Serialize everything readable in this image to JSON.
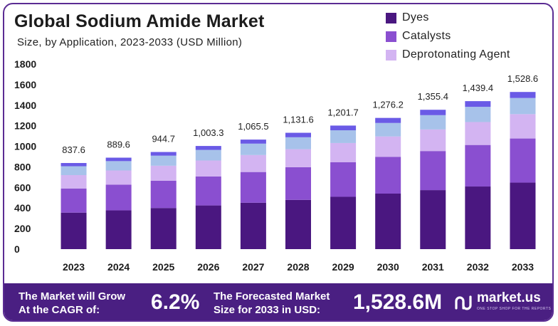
{
  "header": {
    "title": "Global Sodium Amide Market",
    "subtitle": "Size, by Application, 2023-2033 (USD Million)"
  },
  "colors": {
    "dyes": "#4a1780",
    "catalysts": "#8a4fd0",
    "deprotonating": "#d3b4f2",
    "top_segment": "#a7c2ea",
    "cap": "#6a5ae6",
    "footer_bg": "#4a1f82"
  },
  "legend": [
    {
      "label": "Dyes",
      "color": "#4a1780"
    },
    {
      "label": "Catalysts",
      "color": "#8a4fd0"
    },
    {
      "label": "Deprotonating Agent",
      "color": "#d3b4f2"
    }
  ],
  "chart_data": {
    "type": "bar",
    "stacked": true,
    "categories": [
      "2023",
      "2024",
      "2025",
      "2026",
      "2027",
      "2028",
      "2029",
      "2030",
      "2031",
      "2032",
      "2033"
    ],
    "totals": [
      837.6,
      889.6,
      944.7,
      1003.3,
      1065.5,
      1131.6,
      1201.7,
      1276.2,
      1355.4,
      1439.4,
      1528.6
    ],
    "total_labels": [
      "837.6",
      "889.6",
      "944.7",
      "1,003.3",
      "1,065.5",
      "1,131.6",
      "1,201.7",
      "1,276.2",
      "1,355.4",
      "1,439.4",
      "1,528.6"
    ],
    "series": [
      {
        "name": "Dyes",
        "color": "#4a1780",
        "values": [
          355,
          377,
          400,
          425,
          451,
          479,
          509,
          540,
          574,
          609,
          647
        ]
      },
      {
        "name": "Catalysts",
        "color": "#8a4fd0",
        "values": [
          235,
          250,
          265,
          282,
          299,
          318,
          337,
          358,
          380,
          404,
          429
        ]
      },
      {
        "name": "Deprotonating Agent",
        "color": "#d3b4f2",
        "values": [
          130,
          138,
          146,
          155,
          165,
          175,
          186,
          198,
          210,
          223,
          237
        ]
      },
      {
        "color": "#a7c2ea",
        "values": [
          86,
          91,
          98,
          103,
          111,
          116,
          124,
          131,
          139,
          148,
          157
        ]
      },
      {
        "color": "#6a5ae6",
        "values": [
          31.6,
          33.6,
          35.7,
          38.3,
          39.5,
          43.6,
          45.7,
          49.2,
          52.4,
          55.4,
          58.6
        ]
      }
    ],
    "ylim": [
      0,
      1800
    ],
    "yticks": [
      "0",
      "200",
      "400",
      "600",
      "800",
      "1000",
      "1200",
      "1400",
      "1600",
      "1800"
    ],
    "grid": false
  },
  "footer": {
    "grow_text_line1": "The Market will Grow",
    "grow_text_line2": "At the CAGR of:",
    "cagr": "6.2%",
    "forecast_line1": "The Forecasted Market",
    "forecast_line2": "Size for 2033 in USD:",
    "forecast_value": "1,528.6M",
    "brand": "market.us",
    "brand_tagline": "ONE STOP SHOP FOR THE REPORTS"
  }
}
